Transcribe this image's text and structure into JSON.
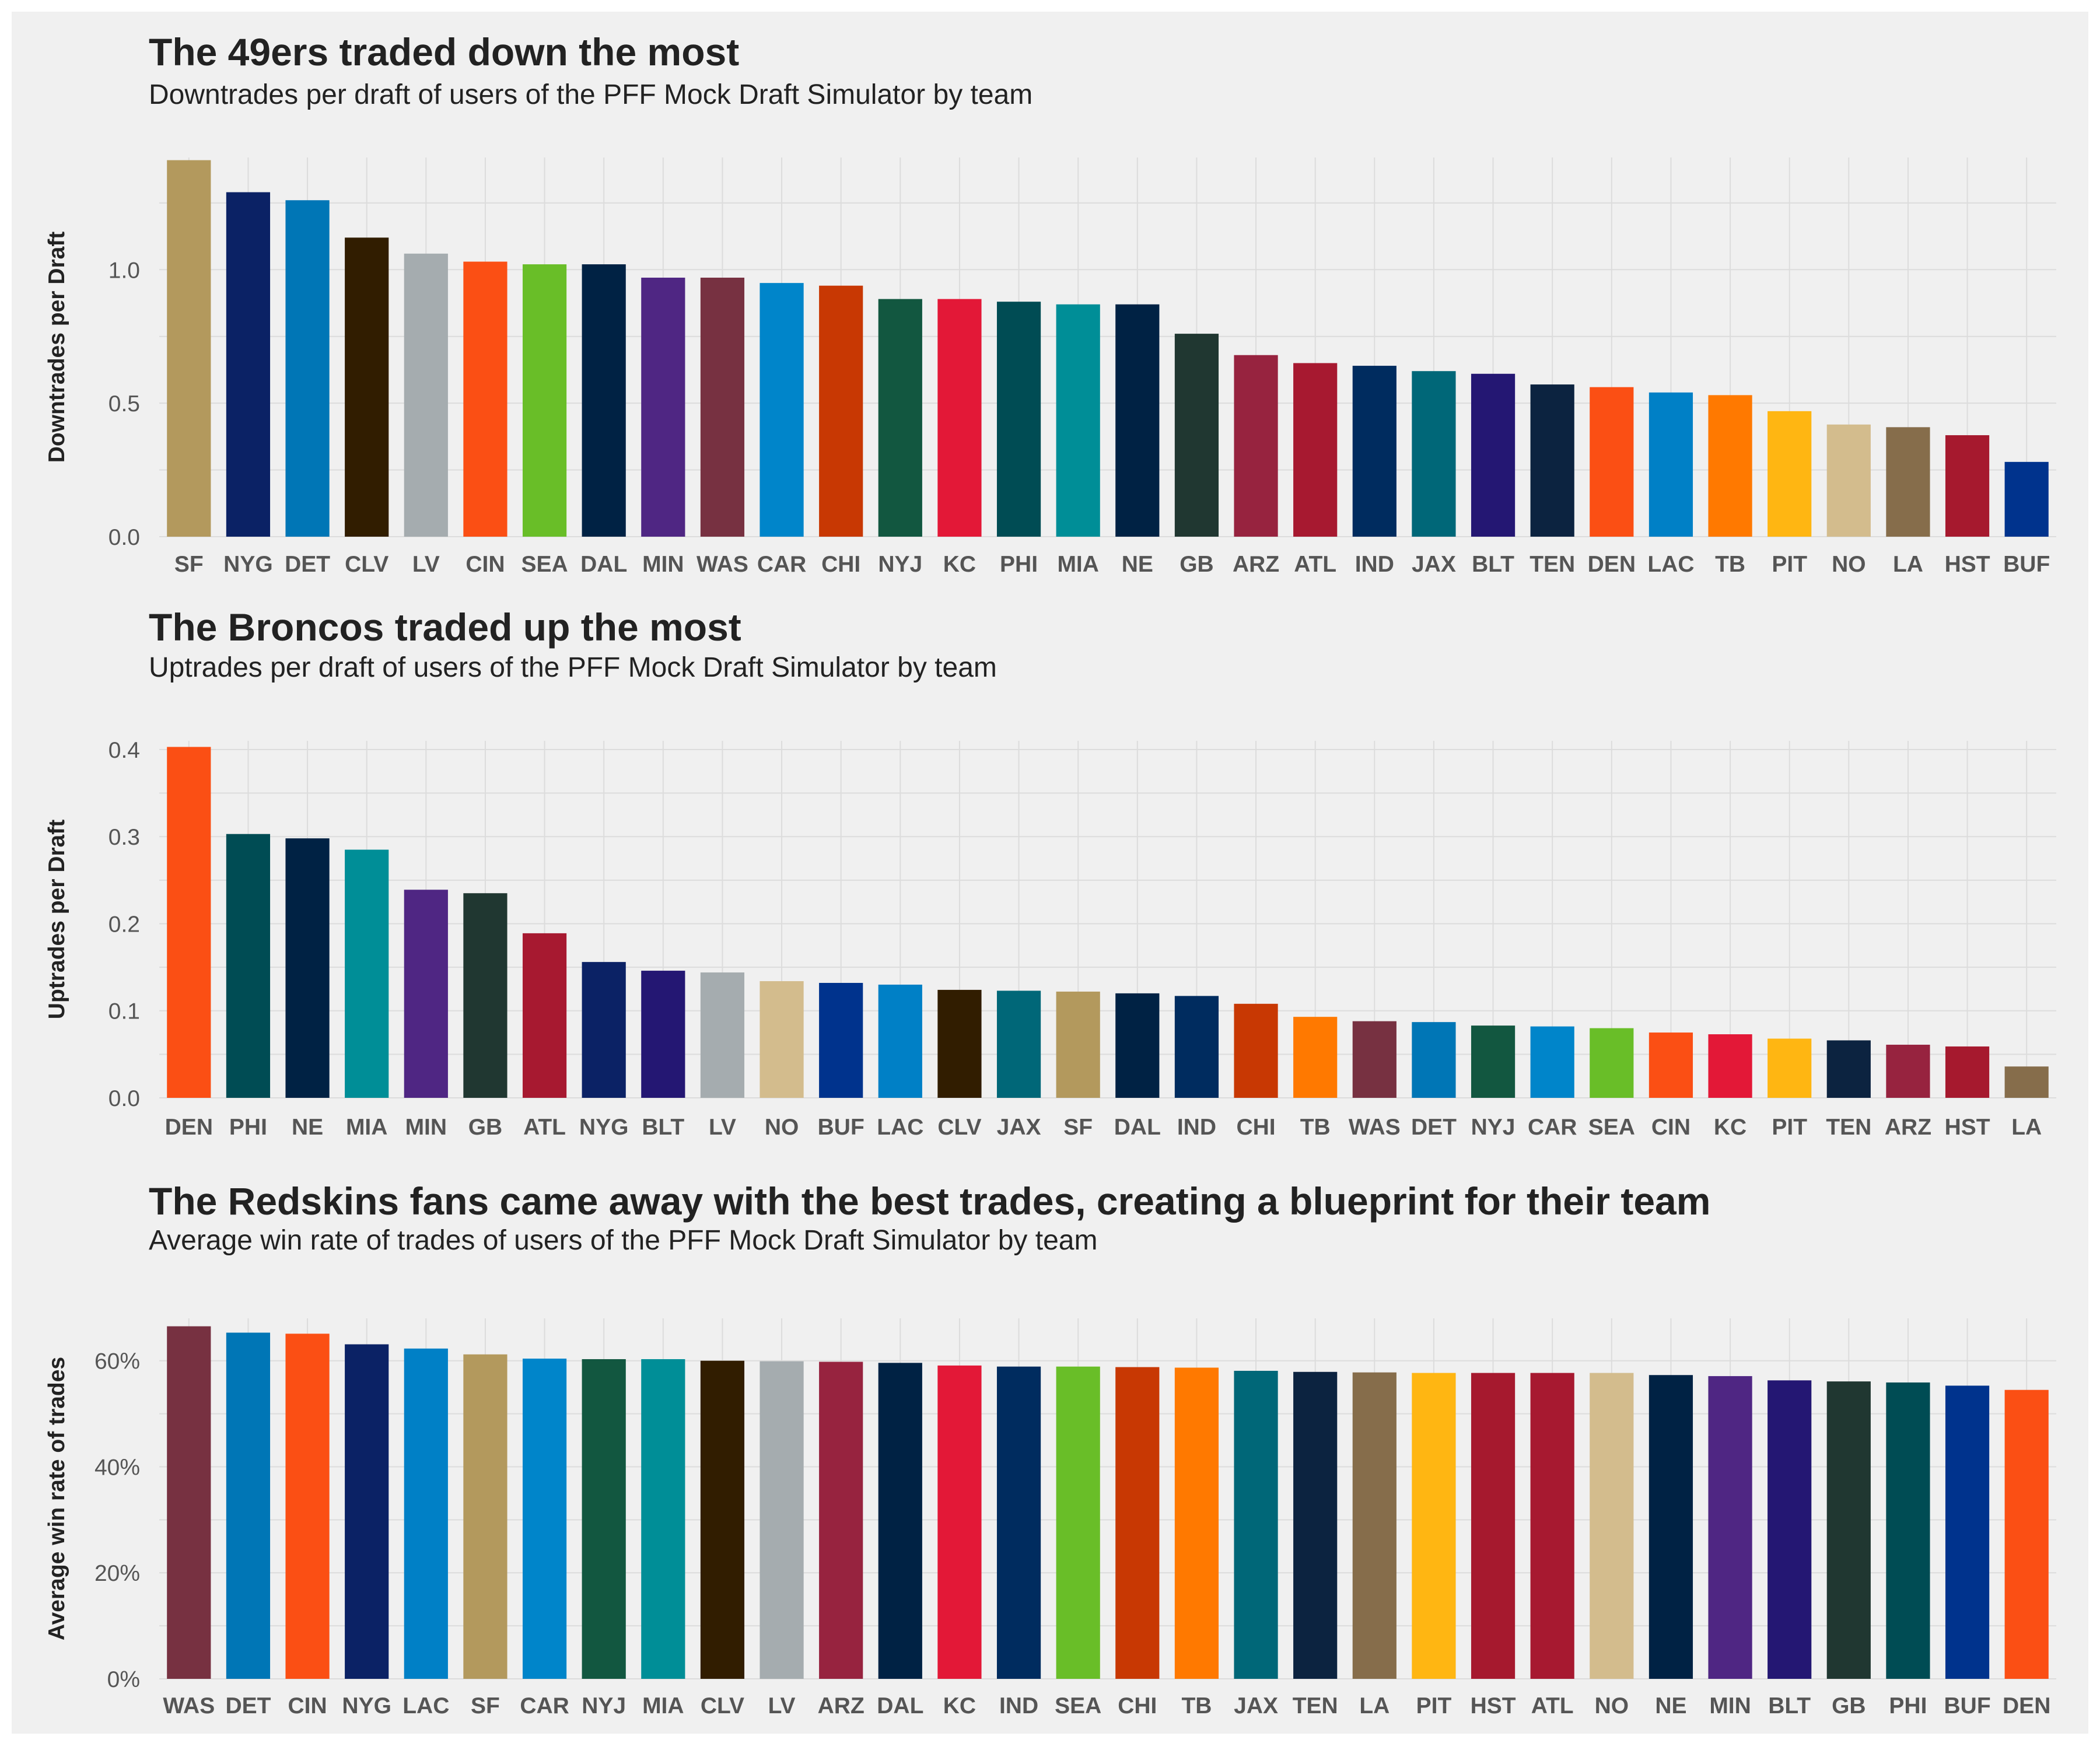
{
  "chart_data": [
    {
      "type": "bar",
      "title": "The 49ers traded down the most",
      "subtitle": "Downtrades per draft of users of the PFF Mock Draft Simulator by team",
      "xlabel": "",
      "ylabel": "Downtrades per Draft",
      "ylim": [
        0,
        1.42
      ],
      "yticks": [
        0,
        0.5,
        1
      ],
      "ytick_labels": [
        "0.0",
        "0.5",
        "1.0"
      ],
      "grid": true,
      "categories": [
        "SF",
        "NYG",
        "DET",
        "CLV",
        "LV",
        "CIN",
        "SEA",
        "DAL",
        "MIN",
        "WAS",
        "CAR",
        "CHI",
        "NYJ",
        "KC",
        "PHI",
        "MIA",
        "NE",
        "GB",
        "ARZ",
        "ATL",
        "IND",
        "JAX",
        "BLT",
        "TEN",
        "DEN",
        "LAC",
        "TB",
        "PIT",
        "NO",
        "LA",
        "HST",
        "BUF"
      ],
      "values": [
        1.41,
        1.29,
        1.26,
        1.12,
        1.06,
        1.03,
        1.02,
        1.02,
        0.97,
        0.97,
        0.95,
        0.94,
        0.89,
        0.89,
        0.88,
        0.87,
        0.87,
        0.76,
        0.68,
        0.65,
        0.64,
        0.62,
        0.61,
        0.57,
        0.56,
        0.54,
        0.53,
        0.47,
        0.42,
        0.41,
        0.38,
        0.28
      ],
      "colors": [
        "#B3995D",
        "#0B2265",
        "#0076B6",
        "#311D00",
        "#A5ACAF",
        "#FB4F14",
        "#69BE28",
        "#002244",
        "#4F2683",
        "#773141",
        "#0085CA",
        "#C83803",
        "#125740",
        "#E31837",
        "#004C54",
        "#008E97",
        "#002244",
        "#203731",
        "#97233F",
        "#A71930",
        "#002C5F",
        "#006778",
        "#241773",
        "#0C2340",
        "#FB4F14",
        "#0080C6",
        "#FF7900",
        "#FFB612",
        "#D3BC8D",
        "#866D4B",
        "#A6192E",
        "#00338D"
      ]
    },
    {
      "type": "bar",
      "title": "The Broncos traded up the most",
      "subtitle": "Uptrades per draft of users of the PFF Mock Draft Simulator by team",
      "xlabel": "",
      "ylabel": "Uptrades per Draft",
      "ylim": [
        0,
        0.41
      ],
      "yticks": [
        0,
        0.1,
        0.2,
        0.3,
        0.4
      ],
      "ytick_labels": [
        "0.0",
        "0.1",
        "0.2",
        "0.3",
        "0.4"
      ],
      "grid": true,
      "categories": [
        "DEN",
        "PHI",
        "NE",
        "MIA",
        "MIN",
        "GB",
        "ATL",
        "NYG",
        "BLT",
        "LV",
        "NO",
        "BUF",
        "LAC",
        "CLV",
        "JAX",
        "SF",
        "DAL",
        "IND",
        "CHI",
        "TB",
        "WAS",
        "DET",
        "NYJ",
        "CAR",
        "SEA",
        "CIN",
        "KC",
        "PIT",
        "TEN",
        "ARZ",
        "HST",
        "LA"
      ],
      "values": [
        0.403,
        0.303,
        0.298,
        0.285,
        0.239,
        0.235,
        0.189,
        0.156,
        0.146,
        0.144,
        0.134,
        0.132,
        0.13,
        0.124,
        0.123,
        0.122,
        0.12,
        0.117,
        0.108,
        0.093,
        0.088,
        0.087,
        0.083,
        0.082,
        0.08,
        0.075,
        0.073,
        0.068,
        0.066,
        0.061,
        0.059,
        0.036
      ],
      "colors": [
        "#FB4F14",
        "#004C54",
        "#002244",
        "#008E97",
        "#4F2683",
        "#203731",
        "#A71930",
        "#0B2265",
        "#241773",
        "#A5ACAF",
        "#D3BC8D",
        "#00338D",
        "#0080C6",
        "#311D00",
        "#006778",
        "#B3995D",
        "#002244",
        "#002C5F",
        "#C83803",
        "#FF7900",
        "#773141",
        "#0076B6",
        "#125740",
        "#0085CA",
        "#69BE28",
        "#FB4F14",
        "#E31837",
        "#FFB612",
        "#0C2340",
        "#97233F",
        "#A6192E",
        "#866D4B"
      ]
    },
    {
      "type": "bar",
      "title": "The Redskins fans came away with the best trades, creating a blueprint for their team",
      "subtitle": "Average win rate of trades of users of the PFF Mock Draft Simulator by team",
      "xlabel": "",
      "ylabel": "Average win rate of trades",
      "ylim": [
        0,
        68
      ],
      "yticks": [
        0,
        20,
        40,
        60
      ],
      "ytick_labels": [
        "0%",
        "20%",
        "40%",
        "60%"
      ],
      "grid": true,
      "categories": [
        "WAS",
        "DET",
        "CIN",
        "NYG",
        "LAC",
        "SF",
        "CAR",
        "NYJ",
        "MIA",
        "CLV",
        "LV",
        "ARZ",
        "DAL",
        "KC",
        "IND",
        "SEA",
        "CHI",
        "TB",
        "JAX",
        "TEN",
        "LA",
        "PIT",
        "HST",
        "ATL",
        "NO",
        "NE",
        "MIN",
        "BLT",
        "GB",
        "PHI",
        "BUF",
        "DEN"
      ],
      "values": [
        66.5,
        65.3,
        65.1,
        63.1,
        62.3,
        61.2,
        60.4,
        60.3,
        60.3,
        60.0,
        59.9,
        59.8,
        59.6,
        59.1,
        58.9,
        58.9,
        58.8,
        58.7,
        58.1,
        57.9,
        57.8,
        57.7,
        57.7,
        57.7,
        57.7,
        57.3,
        57.1,
        56.3,
        56.1,
        55.9,
        55.3,
        54.5
      ],
      "colors": [
        "#773141",
        "#0076B6",
        "#FB4F14",
        "#0B2265",
        "#0080C6",
        "#B3995D",
        "#0085CA",
        "#125740",
        "#008E97",
        "#311D00",
        "#A5ACAF",
        "#97233F",
        "#002244",
        "#E31837",
        "#002C5F",
        "#69BE28",
        "#C83803",
        "#FF7900",
        "#006778",
        "#0C2340",
        "#866D4B",
        "#FFB612",
        "#A6192E",
        "#A71930",
        "#D3BC8D",
        "#002244",
        "#4F2683",
        "#241773",
        "#203731",
        "#004C54",
        "#00338D",
        "#FB4F14"
      ]
    }
  ]
}
